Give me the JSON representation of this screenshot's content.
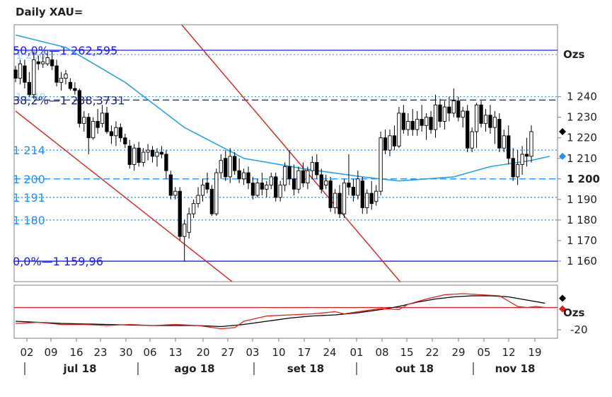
{
  "title": "Daily XAU=",
  "chart_data": {
    "type": "candlestick",
    "title": "Daily XAU=",
    "ylabel": "Ozs",
    "ylim": [
      1150,
      1275
    ],
    "yticks": [
      "1 160",
      "1 170",
      "1 180",
      "1 190",
      "1 200",
      "1 210",
      "1 220",
      "1 230",
      "1 240"
    ],
    "bold_tick": "1 200",
    "x_day_ticks": [
      "02",
      "09",
      "16",
      "23",
      "30",
      "06",
      "13",
      "20",
      "27",
      "03",
      "10",
      "17",
      "24",
      "01",
      "08",
      "15",
      "22",
      "29",
      "05",
      "12",
      "19"
    ],
    "months": [
      "jul 18",
      "ago 18",
      "set 18",
      "out 18",
      "nov 18"
    ],
    "levels": [
      {
        "label": "50,0%—1 262,595",
        "value": 1262.595,
        "style": "solid",
        "color": "#1a1aff"
      },
      {
        "label": "38,2%—1 238,3731",
        "value": 1238.3731,
        "style": "dashed",
        "color": "#1a237e"
      },
      {
        "label": "0,0%—1 159,96",
        "value": 1159.96,
        "style": "solid",
        "color": "#1a1aff"
      },
      {
        "label": "1 214",
        "value": 1214,
        "style": "dotted",
        "color": "#1e90ff"
      },
      {
        "label": "1 200",
        "value": 1200,
        "style": "dashed",
        "color": "#1e90ff"
      },
      {
        "label": "1 191",
        "value": 1191,
        "style": "dotted",
        "color": "#1e90ff"
      },
      {
        "label": "1 180",
        "value": 1180,
        "style": "dotted",
        "color": "#1e90ff"
      }
    ],
    "extra_dotted_levels": [
      1260.5,
      1240
    ],
    "overlap_labels": [
      "1 260",
      "1 240"
    ],
    "last_price": 1223,
    "ma_last": 1211,
    "candles": [
      [
        1253,
        1255,
        1247,
        1249
      ],
      [
        1249,
        1258,
        1246,
        1256
      ],
      [
        1255,
        1258,
        1244,
        1247
      ],
      [
        1247,
        1252,
        1240,
        1241
      ],
      [
        1241,
        1262,
        1239,
        1258
      ],
      [
        1257,
        1260,
        1253,
        1256
      ],
      [
        1256,
        1261,
        1254,
        1257
      ],
      [
        1256,
        1261,
        1255,
        1259
      ],
      [
        1258,
        1262,
        1253,
        1255
      ],
      [
        1255,
        1258,
        1245,
        1247
      ],
      [
        1247,
        1252,
        1243,
        1249
      ],
      [
        1249,
        1253,
        1246,
        1251
      ],
      [
        1247,
        1249,
        1243,
        1244
      ],
      [
        1244,
        1247,
        1241,
        1243
      ],
      [
        1243,
        1244,
        1225,
        1227
      ],
      [
        1227,
        1233,
        1223,
        1230
      ],
      [
        1230,
        1232,
        1212,
        1220
      ],
      [
        1220,
        1230,
        1219,
        1228
      ],
      [
        1228,
        1234,
        1222,
        1225
      ],
      [
        1227,
        1236,
        1225,
        1232
      ],
      [
        1232,
        1235,
        1222,
        1223
      ],
      [
        1223,
        1226,
        1217,
        1221
      ],
      [
        1221,
        1228,
        1216,
        1225
      ],
      [
        1225,
        1227,
        1218,
        1220
      ],
      [
        1220,
        1222,
        1215,
        1217
      ],
      [
        1216,
        1219,
        1205,
        1207
      ],
      [
        1207,
        1217,
        1204,
        1215
      ],
      [
        1215,
        1218,
        1206,
        1208
      ],
      [
        1208,
        1215,
        1206,
        1213
      ],
      [
        1213,
        1217,
        1209,
        1214
      ],
      [
        1214,
        1216,
        1208,
        1211
      ],
      [
        1211,
        1215,
        1206,
        1213
      ],
      [
        1213,
        1216,
        1210,
        1212
      ],
      [
        1212,
        1214,
        1200,
        1204
      ],
      [
        1202,
        1204,
        1190,
        1192
      ],
      [
        1192,
        1196,
        1190,
        1194
      ],
      [
        1194,
        1196,
        1170,
        1172
      ],
      [
        1172,
        1180,
        1160,
        1178
      ],
      [
        1174,
        1186,
        1171,
        1183
      ],
      [
        1183,
        1190,
        1181,
        1188
      ],
      [
        1188,
        1196,
        1186,
        1192
      ],
      [
        1192,
        1200,
        1189,
        1197
      ],
      [
        1198,
        1203,
        1193,
        1195
      ],
      [
        1195,
        1197,
        1182,
        1183
      ],
      [
        1183,
        1205,
        1182,
        1203
      ],
      [
        1203,
        1212,
        1200,
        1209
      ],
      [
        1210,
        1214,
        1199,
        1201
      ],
      [
        1201,
        1215,
        1198,
        1211
      ],
      [
        1211,
        1213,
        1202,
        1204
      ],
      [
        1204,
        1210,
        1198,
        1200
      ],
      [
        1200,
        1205,
        1197,
        1203
      ],
      [
        1203,
        1206,
        1195,
        1198
      ],
      [
        1198,
        1201,
        1190,
        1192
      ],
      [
        1192,
        1200,
        1191,
        1198
      ],
      [
        1198,
        1203,
        1192,
        1195
      ],
      [
        1195,
        1199,
        1191,
        1197
      ],
      [
        1197,
        1203,
        1195,
        1201
      ],
      [
        1201,
        1203,
        1189,
        1191
      ],
      [
        1191,
        1199,
        1189,
        1197
      ],
      [
        1197,
        1208,
        1194,
        1206
      ],
      [
        1206,
        1214,
        1197,
        1200
      ],
      [
        1200,
        1207,
        1192,
        1195
      ],
      [
        1195,
        1206,
        1193,
        1204
      ],
      [
        1204,
        1208,
        1196,
        1198
      ],
      [
        1198,
        1206,
        1195,
        1204
      ],
      [
        1204,
        1211,
        1200,
        1208
      ],
      [
        1208,
        1212,
        1200,
        1202
      ],
      [
        1202,
        1205,
        1193,
        1195
      ],
      [
        1197,
        1202,
        1195,
        1199
      ],
      [
        1199,
        1201,
        1184,
        1186
      ],
      [
        1186,
        1195,
        1183,
        1193
      ],
      [
        1193,
        1197,
        1181,
        1183
      ],
      [
        1183,
        1200,
        1181,
        1198
      ],
      [
        1198,
        1212,
        1192,
        1196
      ],
      [
        1196,
        1200,
        1189,
        1192
      ],
      [
        1192,
        1204,
        1190,
        1200
      ],
      [
        1199,
        1201,
        1183,
        1186
      ],
      [
        1186,
        1195,
        1183,
        1193
      ],
      [
        1193,
        1199,
        1185,
        1188
      ],
      [
        1189,
        1197,
        1187,
        1194
      ],
      [
        1194,
        1223,
        1192,
        1220
      ],
      [
        1220,
        1224,
        1212,
        1214
      ],
      [
        1214,
        1224,
        1211,
        1221
      ],
      [
        1221,
        1226,
        1214,
        1216
      ],
      [
        1216,
        1235,
        1215,
        1232
      ],
      [
        1232,
        1236,
        1222,
        1224
      ],
      [
        1224,
        1232,
        1221,
        1228
      ],
      [
        1228,
        1234,
        1221,
        1224
      ],
      [
        1224,
        1233,
        1221,
        1229
      ],
      [
        1229,
        1236,
        1223,
        1226
      ],
      [
        1226,
        1232,
        1219,
        1230
      ],
      [
        1230,
        1233,
        1222,
        1224
      ],
      [
        1224,
        1241,
        1220,
        1236
      ],
      [
        1236,
        1239,
        1225,
        1228
      ],
      [
        1228,
        1238,
        1224,
        1235
      ],
      [
        1235,
        1240,
        1228,
        1232
      ],
      [
        1232,
        1244,
        1230,
        1238
      ],
      [
        1238,
        1240,
        1228,
        1230
      ],
      [
        1230,
        1235,
        1225,
        1233
      ],
      [
        1233,
        1236,
        1213,
        1215
      ],
      [
        1215,
        1225,
        1213,
        1223
      ],
      [
        1223,
        1237,
        1215,
        1236
      ],
      [
        1236,
        1238,
        1225,
        1227
      ],
      [
        1227,
        1234,
        1223,
        1231
      ],
      [
        1231,
        1236,
        1222,
        1225
      ],
      [
        1225,
        1233,
        1217,
        1230
      ],
      [
        1229,
        1232,
        1213,
        1215
      ],
      [
        1215,
        1224,
        1213,
        1221
      ],
      [
        1221,
        1226,
        1207,
        1210
      ],
      [
        1210,
        1215,
        1199,
        1201
      ],
      [
        1201,
        1214,
        1197,
        1207
      ],
      [
        1207,
        1216,
        1202,
        1212
      ],
      [
        1212,
        1220,
        1206,
        1211
      ],
      [
        1211,
        1226,
        1208,
        1223
      ]
    ],
    "ma": [
      [
        0,
        1270
      ],
      [
        11,
        1264
      ],
      [
        24,
        1247
      ],
      [
        37,
        1225
      ],
      [
        50,
        1210
      ],
      [
        63,
        1205
      ],
      [
        76,
        1201
      ],
      [
        84,
        1199
      ],
      [
        96,
        1201
      ],
      [
        104,
        1206
      ],
      [
        113,
        1209
      ],
      [
        117,
        1211
      ]
    ],
    "trendlines": [
      [
        [
          0,
          1233
        ],
        [
          48,
          1149
        ]
      ],
      [
        [
          36,
          1276
        ],
        [
          85,
          1148
        ]
      ]
    ],
    "oscillator": {
      "label_top": "Ozs",
      "yticks": [
        "-20"
      ],
      "ylim": [
        -28,
        22
      ],
      "black": [
        [
          0,
          -12
        ],
        [
          10,
          -14
        ],
        [
          20,
          -15
        ],
        [
          30,
          -16
        ],
        [
          40,
          -16
        ],
        [
          45,
          -17
        ],
        [
          50,
          -15
        ],
        [
          55,
          -12
        ],
        [
          60,
          -9
        ],
        [
          65,
          -7
        ],
        [
          70,
          -6
        ],
        [
          75,
          -4
        ],
        [
          80,
          -1
        ],
        [
          84,
          2
        ],
        [
          88,
          6
        ],
        [
          92,
          9
        ],
        [
          96,
          11
        ],
        [
          100,
          12
        ],
        [
          104,
          12
        ],
        [
          108,
          11
        ],
        [
          112,
          8
        ],
        [
          116,
          5
        ]
      ],
      "red": [
        [
          0,
          -14
        ],
        [
          5,
          -13
        ],
        [
          10,
          -15
        ],
        [
          15,
          -15
        ],
        [
          20,
          -16
        ],
        [
          25,
          -15
        ],
        [
          30,
          -16
        ],
        [
          35,
          -15
        ],
        [
          40,
          -16
        ],
        [
          45,
          -19
        ],
        [
          48,
          -18
        ],
        [
          50,
          -12
        ],
        [
          55,
          -7
        ],
        [
          60,
          -6
        ],
        [
          65,
          -5
        ],
        [
          70,
          -3
        ],
        [
          72,
          -5
        ],
        [
          75,
          -3
        ],
        [
          80,
          0
        ],
        [
          84,
          -1
        ],
        [
          86,
          4
        ],
        [
          90,
          9
        ],
        [
          94,
          13
        ],
        [
          98,
          14
        ],
        [
          102,
          13
        ],
        [
          106,
          12
        ],
        [
          108,
          7
        ],
        [
          110,
          2
        ],
        [
          112,
          1
        ],
        [
          114,
          2
        ],
        [
          116,
          1
        ]
      ],
      "level": 1
    }
  }
}
